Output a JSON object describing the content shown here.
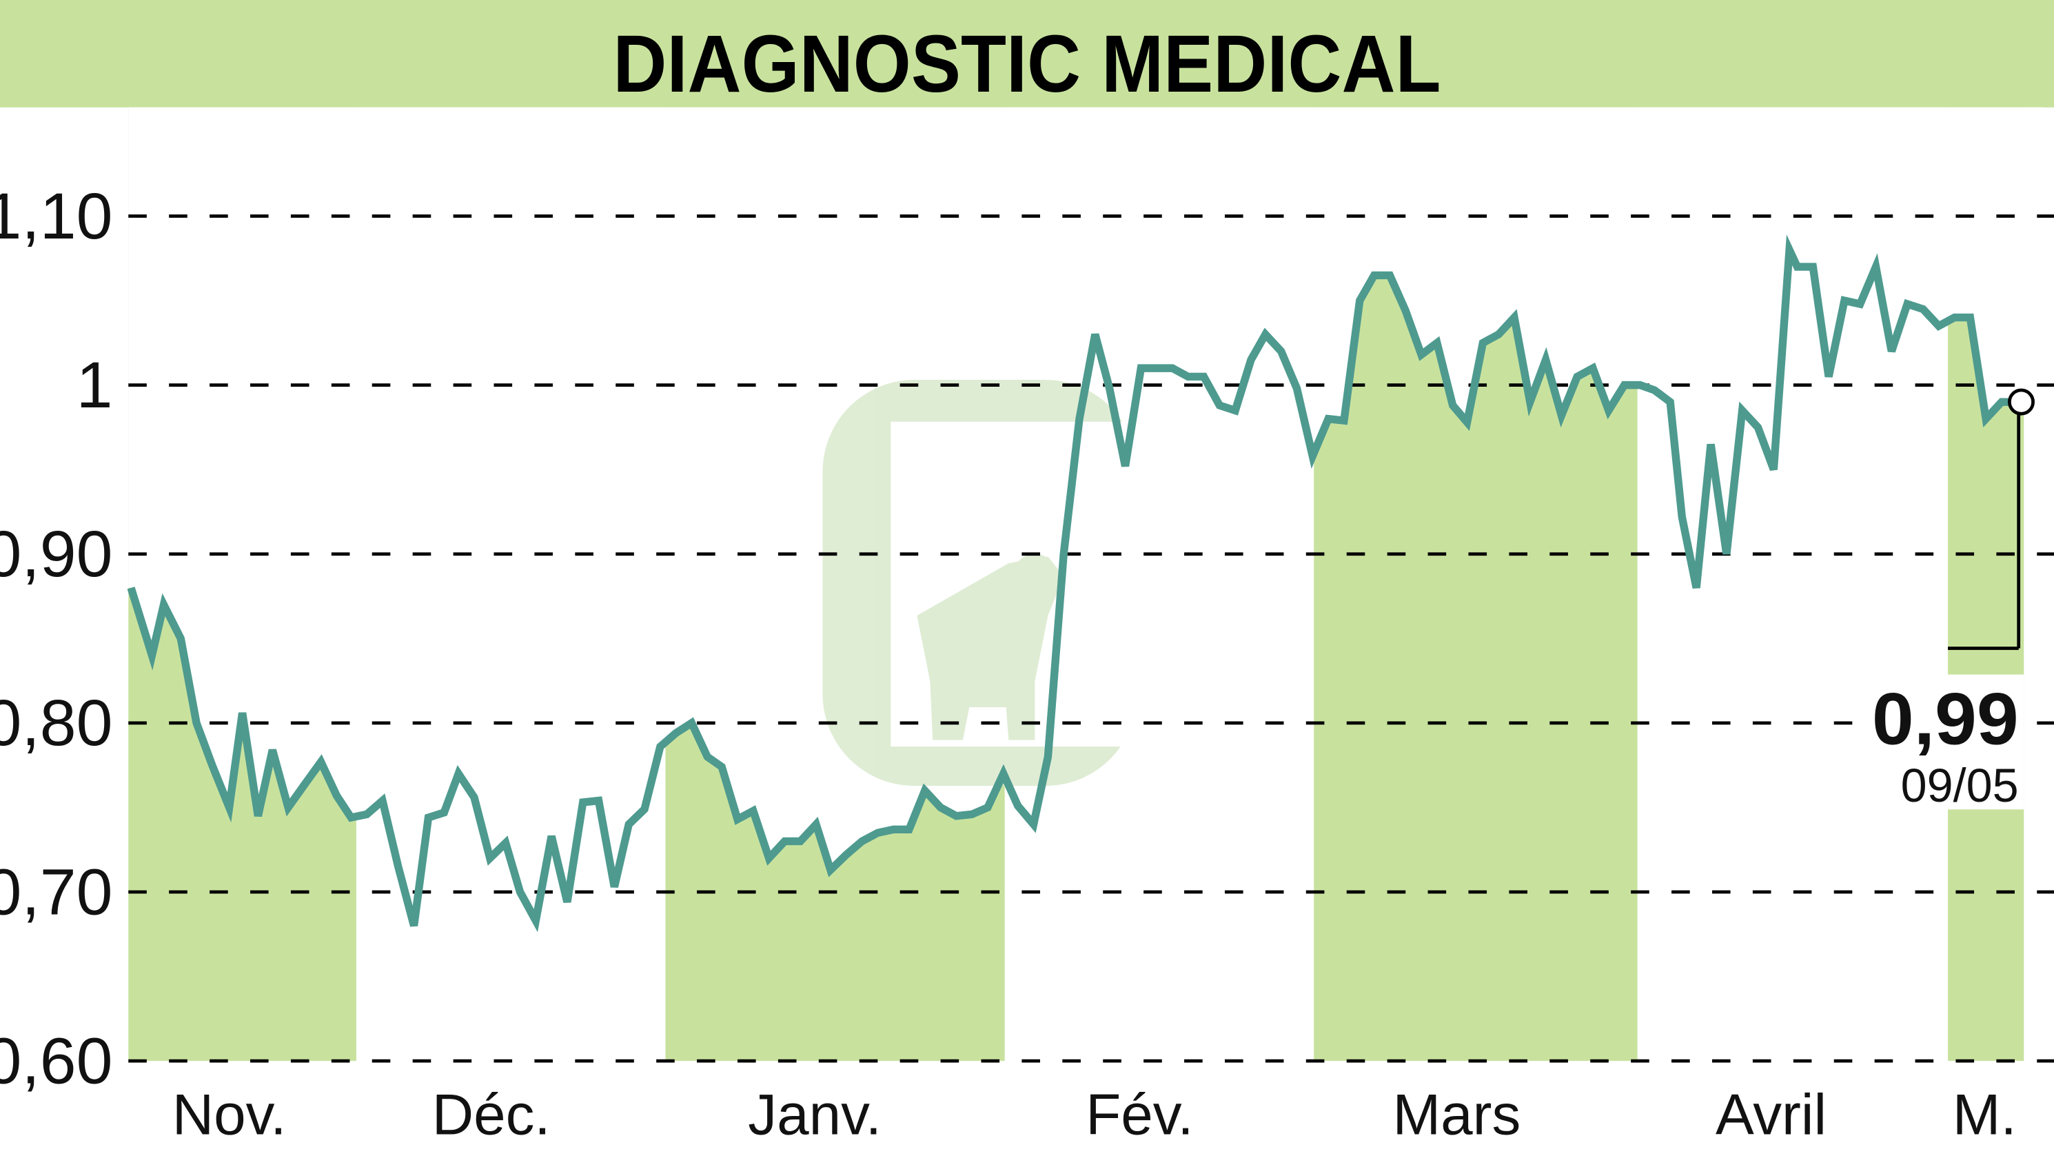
{
  "header": {
    "title": "DIAGNOSTIC MEDICAL",
    "band_color": "#c8e29e"
  },
  "colors": {
    "line": "#4e9a8f",
    "fill": "#c8e29e",
    "grid": "#000000",
    "watermark": "#d4e8c8"
  },
  "last_value": {
    "price": "0,99",
    "date": "09/05"
  },
  "chart_data": {
    "type": "line",
    "title": "DIAGNOSTIC MEDICAL",
    "xlabel": "",
    "ylabel": "",
    "ylim": [
      0.6,
      1.1
    ],
    "yticks": [
      1.1,
      1.0,
      0.9,
      0.8,
      0.7,
      0.6
    ],
    "ytick_labels": [
      "1,10",
      "1",
      "0,90",
      "0,80",
      "0,70",
      "0,60"
    ],
    "grid": true,
    "grid_style": "dashed horizontal",
    "legend": "none",
    "month_labels": [
      "Nov.",
      "Déc.",
      "Janv.",
      "Fév.",
      "Mars",
      "Avril",
      "M."
    ],
    "month_label_x": [
      175,
      375,
      622,
      870,
      1112,
      1352,
      1515
    ],
    "shaded_months": [
      {
        "label": "Nov.",
        "x0": 98,
        "x1": 272
      },
      {
        "label": "Janv.",
        "x0": 508,
        "x1": 767
      },
      {
        "label": "Mars",
        "x0": 1003,
        "x1": 1250
      },
      {
        "label": "M.",
        "x0": 1487,
        "x1": 1545
      }
    ],
    "series": [
      {
        "name": "DIAGNOSTIC MEDICAL",
        "x": [
          100,
          116,
          125,
          138,
          150,
          162,
          175,
          185,
          197,
          208,
          220,
          232,
          245,
          257,
          268,
          280,
          292,
          304,
          316,
          327,
          339,
          350,
          362,
          374,
          386,
          397,
          409,
          421,
          433,
          445,
          457,
          469,
          480,
          492,
          504,
          516,
          528,
          540,
          551,
          563,
          575,
          587,
          599,
          611,
          623,
          634,
          646,
          658,
          670,
          682,
          694,
          706,
          718,
          730,
          742,
          754,
          766,
          777,
          789,
          800,
          812,
          824,
          836,
          847,
          859,
          871,
          883,
          895,
          907,
          919,
          931,
          943,
          955,
          966,
          978,
          990,
          1002,
          1014,
          1026,
          1038,
          1049,
          1061,
          1073,
          1085,
          1097,
          1109,
          1120,
          1132,
          1144,
          1156,
          1168,
          1180,
          1192,
          1204,
          1216,
          1228,
          1240,
          1252,
          1263,
          1275,
          1284,
          1295,
          1306,
          1318,
          1330,
          1342,
          1354,
          1366,
          1372,
          1384,
          1396,
          1408,
          1420,
          1432,
          1444,
          1456,
          1468,
          1480,
          1492,
          1504,
          1516,
          1528,
          1543
        ],
        "values": [
          0.88,
          0.84,
          0.87,
          0.85,
          0.8,
          0.775,
          0.75,
          0.806,
          0.745,
          0.784,
          0.75,
          0.763,
          0.777,
          0.757,
          0.744,
          0.746,
          0.754,
          0.715,
          0.68,
          0.744,
          0.747,
          0.77,
          0.756,
          0.72,
          0.729,
          0.7,
          0.683,
          0.733,
          0.694,
          0.753,
          0.754,
          0.703,
          0.74,
          0.749,
          0.786,
          0.794,
          0.8,
          0.78,
          0.774,
          0.743,
          0.748,
          0.72,
          0.73,
          0.73,
          0.74,
          0.713,
          0.722,
          0.73,
          0.735,
          0.737,
          0.737,
          0.76,
          0.75,
          0.745,
          0.746,
          0.75,
          0.77,
          0.751,
          0.74,
          0.78,
          0.9,
          0.98,
          1.03,
          0.998,
          0.952,
          1.01,
          1.01,
          1.01,
          1.005,
          1.005,
          0.988,
          0.985,
          1.015,
          1.03,
          1.02,
          0.998,
          0.958,
          0.98,
          0.979,
          1.05,
          1.065,
          1.065,
          1.044,
          1.018,
          1.025,
          0.988,
          0.978,
          1.025,
          1.03,
          1.04,
          0.99,
          1.015,
          0.982,
          1.005,
          1.01,
          0.985,
          1.0,
          1.0,
          0.997,
          0.99,
          0.922,
          0.88,
          0.965,
          0.9,
          0.985,
          0.975,
          0.95,
          1.08,
          1.07,
          1.07,
          1.005,
          1.05,
          1.048,
          1.07,
          1.02,
          1.048,
          1.045,
          1.035,
          1.04,
          1.04,
          0.98,
          0.99,
          0.99
        ]
      }
    ],
    "annotations": [
      {
        "text": "0,99",
        "type": "last-value"
      },
      {
        "text": "09/05",
        "type": "last-date"
      }
    ]
  }
}
